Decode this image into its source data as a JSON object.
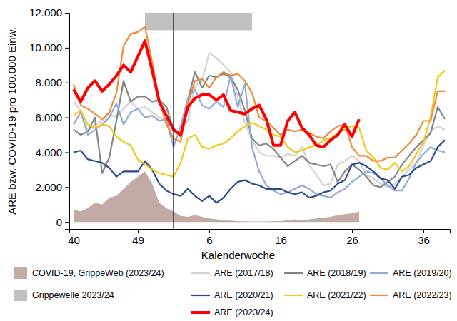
{
  "chart_data": {
    "type": "line",
    "x_label": "Kalenderwoche",
    "y_label": "ARE bzw. COVID-19 pro 100.000 Einw.",
    "categories": [
      "40",
      null,
      null,
      null,
      null,
      null,
      null,
      null,
      null,
      "49",
      null,
      null,
      null,
      null,
      null,
      null,
      null,
      null,
      null,
      "6",
      null,
      null,
      null,
      null,
      null,
      null,
      null,
      null,
      null,
      "16",
      null,
      null,
      null,
      null,
      null,
      null,
      null,
      null,
      null,
      "26",
      null,
      null,
      null,
      null,
      null,
      null,
      null,
      null,
      null,
      "36",
      null,
      null,
      null
    ],
    "xlim": [
      -0.6,
      52.7
    ],
    "ylim": [
      -400,
      12000
    ],
    "yticks": [
      0,
      {
        "value": 2000,
        "label": "2.000"
      },
      {
        "value": 4000,
        "label": "4.000"
      },
      {
        "value": 6000,
        "label": "6.000"
      },
      {
        "value": 8000,
        "label": "8.000"
      },
      {
        "value": 10000,
        "label": "10.000"
      },
      {
        "value": 12000,
        "label": "12.000"
      }
    ],
    "grid": false,
    "legend": "bottom",
    "band": {
      "name": "Grippewelle 2023/24",
      "color": "#c0c0c0",
      "x": [
        10,
        25
      ],
      "y": [
        11000,
        12000
      ]
    },
    "vline": {
      "position": 14,
      "color": "#000000"
    },
    "series": [
      {
        "name": "COVID-19, GrippeWeb (2023/24)",
        "type": "area",
        "color": "#c2aaa5",
        "values": [
          700,
          600,
          800,
          1100,
          1000,
          1400,
          1500,
          1900,
          2300,
          2600,
          2900,
          2200,
          1100,
          800,
          600,
          350,
          300,
          400,
          300,
          200,
          150,
          100,
          80,
          50,
          40,
          30,
          30,
          30,
          50,
          50,
          100,
          150,
          100,
          150,
          200,
          250,
          300,
          400,
          450,
          500,
          600,
          null,
          null,
          null,
          null,
          null,
          null,
          null,
          null,
          null,
          null,
          null,
          null
        ]
      },
      {
        "name": "ARE (2017/18)",
        "type": "line",
        "color": "#d3d3d3",
        "values": [
          6900,
          6400,
          5200,
          5600,
          5800,
          6200,
          6000,
          6500,
          6900,
          6500,
          6600,
          6300,
          6000,
          5900,
          4600,
          5200,
          5800,
          7800,
          8100,
          9700,
          9400,
          9000,
          8600,
          7200,
          5700,
          4700,
          4000,
          3800,
          3800,
          3700,
          3900,
          3800,
          4300,
          3300,
          2700,
          2100,
          2200,
          3300,
          3500,
          3800,
          3500,
          2700,
          2500,
          2200,
          2000,
          2200,
          2600,
          3000,
          3400,
          4400,
          5200,
          5500,
          5300
        ]
      },
      {
        "name": "ARE (2018/19)",
        "type": "line",
        "color": "#858585",
        "values": [
          5300,
          5000,
          5200,
          6000,
          2800,
          3700,
          5800,
          8100,
          6900,
          7200,
          7200,
          6900,
          7000,
          6600,
          5300,
          4900,
          7000,
          8600,
          7700,
          8400,
          8300,
          8500,
          8300,
          7600,
          6400,
          4800,
          4400,
          4500,
          4200,
          3700,
          3200,
          3500,
          3800,
          3400,
          3300,
          3200,
          3300,
          2300,
          2900,
          3300,
          3000,
          2600,
          2100,
          2000,
          2300,
          2600,
          3300,
          3800,
          4300,
          4700,
          5100,
          6600,
          5900
        ]
      },
      {
        "name": "ARE (2019/20)",
        "type": "line",
        "color": "#92aad8",
        "values": [
          5600,
          6300,
          5000,
          5300,
          5600,
          6000,
          6800,
          5600,
          6300,
          6500,
          6000,
          6100,
          5800,
          5900,
          4300,
          5500,
          7100,
          7600,
          6700,
          6500,
          6900,
          6600,
          8400,
          6600,
          7900,
          4300,
          2900,
          2100,
          1800,
          1600,
          1700,
          1900,
          2100,
          1900,
          1600,
          1500,
          1400,
          1700,
          1900,
          2300,
          2600,
          2900,
          2800,
          2500,
          2100,
          1800,
          1800,
          2500,
          3400,
          3900,
          4300,
          4100,
          4000
        ]
      },
      {
        "name": "ARE (2020/21)",
        "type": "line",
        "color": "#2c4c8c",
        "values": [
          4000,
          4100,
          3600,
          3500,
          3400,
          3100,
          2600,
          2900,
          2900,
          2900,
          3500,
          3000,
          2200,
          1800,
          1600,
          1500,
          1900,
          1500,
          1200,
          1500,
          1100,
          1400,
          1900,
          2300,
          2400,
          2200,
          2100,
          1900,
          1900,
          1900,
          1700,
          1600,
          1700,
          1400,
          1500,
          1700,
          1800,
          2200,
          2400,
          3300,
          3400,
          3200,
          2900,
          2500,
          2400,
          1900,
          2600,
          2700,
          3100,
          3300,
          3500,
          4300,
          4700
        ]
      },
      {
        "name": "ARE (2021/22)",
        "type": "line",
        "color": "#f5c518",
        "values": [
          6100,
          6400,
          5600,
          5400,
          5600,
          5500,
          4900,
          4600,
          4400,
          3600,
          3300,
          3000,
          2800,
          2700,
          2600,
          3400,
          4800,
          5000,
          4300,
          4200,
          4400,
          4500,
          4800,
          5200,
          5500,
          5700,
          5500,
          5300,
          5000,
          4900,
          4300,
          4000,
          4100,
          4300,
          4400,
          4700,
          4800,
          5100,
          5300,
          5500,
          5400,
          4100,
          3700,
          3100,
          3000,
          3400,
          2900,
          3200,
          3900,
          4600,
          6000,
          8300,
          8700
        ]
      },
      {
        "name": "ARE (2022/23)",
        "type": "line",
        "color": "#ee8a3c",
        "values": [
          7900,
          6700,
          6500,
          6200,
          5900,
          6300,
          7400,
          10100,
          10800,
          10900,
          11200,
          9200,
          7000,
          5600,
          4800,
          4600,
          6800,
          8100,
          8200,
          7700,
          8300,
          8600,
          8400,
          8500,
          8100,
          7400,
          6000,
          5800,
          5400,
          5000,
          5300,
          5200,
          5300,
          5100,
          4900,
          4800,
          5200,
          5500,
          5600,
          4300,
          3800,
          3800,
          3500,
          3500,
          3700,
          3700,
          4100,
          4500,
          5000,
          5800,
          5800,
          7500,
          7500
        ]
      },
      {
        "name": "ARE (2023/24)",
        "type": "line",
        "color": "#ff0000",
        "values": [
          7600,
          6900,
          7700,
          8100,
          7500,
          7900,
          8400,
          9000,
          8600,
          9500,
          10400,
          8700,
          6900,
          6100,
          5300,
          5000,
          6600,
          7100,
          7300,
          7300,
          7000,
          7300,
          6400,
          6300,
          6200,
          6500,
          6700,
          5900,
          4400,
          4400,
          5800,
          6300,
          5400,
          5000,
          4400,
          4300,
          4700,
          5000,
          5600,
          4900,
          5900,
          null,
          null,
          null,
          null,
          null,
          null,
          null,
          null,
          null,
          null,
          null,
          null
        ]
      }
    ]
  }
}
